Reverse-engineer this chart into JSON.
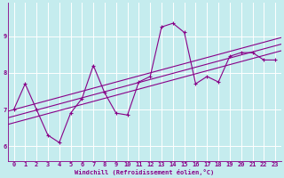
{
  "xlabel": "Windchill (Refroidissement éolien,°C)",
  "background_color": "#c5ecee",
  "line_color": "#880088",
  "x_data": [
    0,
    1,
    2,
    3,
    4,
    5,
    6,
    7,
    8,
    9,
    10,
    11,
    12,
    13,
    14,
    15,
    16,
    17,
    18,
    19,
    20,
    21,
    22,
    23
  ],
  "y_data": [
    7.0,
    7.7,
    7.0,
    6.3,
    6.1,
    6.9,
    7.3,
    8.2,
    7.45,
    6.9,
    6.85,
    7.75,
    7.9,
    9.25,
    9.35,
    9.1,
    7.7,
    7.9,
    7.75,
    8.45,
    8.55,
    8.55,
    8.35,
    8.35
  ],
  "ylim": [
    5.6,
    9.9
  ],
  "xlim": [
    -0.5,
    23.5
  ],
  "yticks": [
    6,
    7,
    8,
    9
  ],
  "xticks": [
    0,
    1,
    2,
    3,
    4,
    5,
    6,
    7,
    8,
    9,
    10,
    11,
    12,
    13,
    14,
    15,
    16,
    17,
    18,
    19,
    20,
    21,
    22,
    23
  ],
  "grid_color": "#ffffff",
  "trend_offsets": [
    -0.18,
    0.0,
    0.18
  ],
  "marker": "+",
  "marker_size": 3,
  "marker_linewidth": 0.8,
  "line_width": 0.8,
  "xlabel_fontsize": 5.0,
  "tick_fontsize": 5.0
}
